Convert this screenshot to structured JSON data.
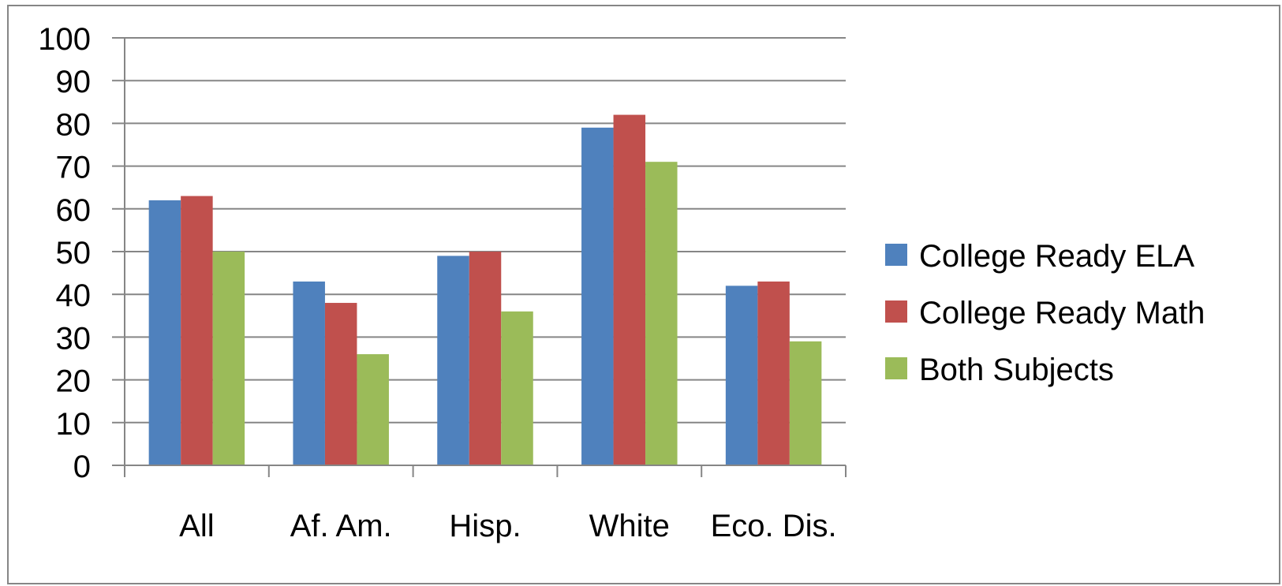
{
  "chart_data": {
    "type": "bar",
    "categories": [
      "All",
      "Af. Am.",
      "Hisp.",
      "White",
      "Eco. Dis."
    ],
    "series": [
      {
        "name": "College Ready ELA",
        "color": "#4F81BD",
        "values": [
          62,
          43,
          49,
          79,
          42
        ]
      },
      {
        "name": "College Ready Math",
        "color": "#C0504D",
        "values": [
          63,
          38,
          50,
          82,
          43
        ]
      },
      {
        "name": "Both Subjects",
        "color": "#9BBB59",
        "values": [
          50,
          26,
          36,
          71,
          29
        ]
      }
    ],
    "y_ticks": [
      "0",
      "10",
      "20",
      "30",
      "40",
      "50",
      "60",
      "70",
      "80",
      "90",
      "100"
    ],
    "ylim": [
      0,
      100
    ],
    "grid": true,
    "legend_position": "right"
  }
}
